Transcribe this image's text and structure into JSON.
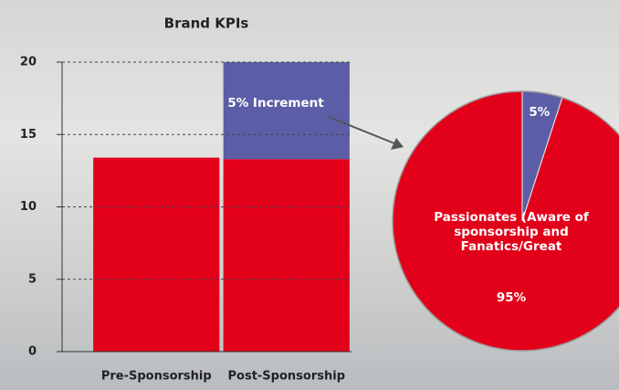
{
  "chart_data": [
    {
      "type": "bar",
      "stacked": true,
      "title": "Brand KPIs",
      "categories": [
        "Pre-Sponsorship",
        "Post-Sponsorship"
      ],
      "series": [
        {
          "color": "#e2001a",
          "values": [
            13.4,
            13.3
          ]
        },
        {
          "color": "#5b5ea6",
          "values": [
            null,
            6.7
          ]
        }
      ],
      "annotation": "5% Increment",
      "ylim": [
        0,
        20
      ],
      "yticks": [
        0,
        5,
        10,
        15,
        20
      ],
      "grid": true
    },
    {
      "type": "pie",
      "categories": [
        null,
        "Passionates (Aware of sponsorship and Fanatics/Great"
      ],
      "values": [
        5,
        95
      ],
      "value_labels": [
        "5%",
        "95%"
      ],
      "colors": [
        "#5b5ea6",
        "#e2001a"
      ]
    }
  ]
}
